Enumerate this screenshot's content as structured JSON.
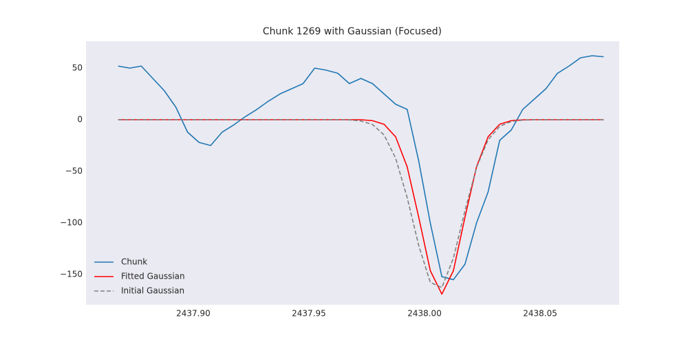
{
  "chart_data": {
    "type": "line",
    "title": "Chunk 1269 with Gaussian (Focused)",
    "x": [
      2437.8675,
      2437.8725,
      2437.8775,
      2437.8825,
      2437.8875,
      2437.8925,
      2437.8975,
      2437.9025,
      2437.9075,
      2437.9125,
      2437.9175,
      2437.9225,
      2437.9275,
      2437.9325,
      2437.9375,
      2437.9425,
      2437.9475,
      2437.9525,
      2437.9575,
      2437.9625,
      2437.9675,
      2437.9725,
      2437.9775,
      2437.9825,
      2437.9875,
      2437.9925,
      2437.9975,
      2438.0025,
      2438.0075,
      2438.0125,
      2438.0175,
      2438.0225,
      2438.0275,
      2438.0325,
      2438.0375,
      2438.0425,
      2438.0475,
      2438.0525,
      2438.0575,
      2438.0625,
      2438.0675,
      2438.0725,
      2438.0775
    ],
    "series": [
      {
        "name": "Chunk",
        "color": "#1f77b4",
        "linestyle": "solid",
        "values": [
          52,
          50,
          52,
          40,
          28,
          12,
          -12,
          -22,
          -25,
          -12,
          -5,
          3,
          10,
          18,
          25,
          30,
          35,
          50,
          48,
          45,
          35,
          40,
          35,
          25,
          15,
          10,
          -40,
          -100,
          -152,
          -155,
          -140,
          -100,
          -70,
          -20,
          -10,
          10,
          20,
          30,
          45,
          52,
          60,
          62,
          61
        ]
      },
      {
        "name": "Fitted Gaussian",
        "color": "#ff0000",
        "linestyle": "solid",
        "values": [
          0,
          0,
          0,
          0,
          0,
          0,
          0,
          0,
          0,
          0,
          0,
          0,
          0,
          0,
          0,
          0,
          0,
          0,
          0,
          0,
          0,
          0,
          -0.9,
          -4.4,
          -16.5,
          -45.6,
          -94.5,
          -146.2,
          -169,
          -146.2,
          -94.5,
          -45.6,
          -16.5,
          -4.4,
          -0.9,
          -0.1,
          0,
          0,
          0,
          0,
          0,
          0,
          0
        ]
      },
      {
        "name": "Initial Gaussian",
        "color": "#808080",
        "linestyle": "dashed",
        "values": [
          0,
          0,
          0,
          0,
          0,
          0,
          0,
          0,
          0,
          0,
          0,
          0,
          0,
          0,
          0,
          0,
          0,
          0,
          0,
          0,
          -0.2,
          -1.2,
          -4.6,
          -14.7,
          -37.2,
          -75.4,
          -121.9,
          -157.6,
          -162.6,
          -134.0,
          -88.1,
          -46.3,
          -19.4,
          -6.5,
          -1.7,
          -0.4,
          0,
          0,
          0,
          0,
          0,
          0,
          0
        ]
      }
    ],
    "xlim": [
      2437.8536,
      2438.0842
    ],
    "ylim": [
      -179.3,
      76
    ],
    "xticks": [
      {
        "value": 2437.9,
        "label": "2437.90"
      },
      {
        "value": 2437.95,
        "label": "2437.95"
      },
      {
        "value": 2438.0,
        "label": "2438.00"
      },
      {
        "value": 2438.05,
        "label": "2438.05"
      }
    ],
    "yticks": [
      {
        "value": -150,
        "label": "−150"
      },
      {
        "value": -100,
        "label": "−100"
      },
      {
        "value": -50,
        "label": "−50"
      },
      0,
      50
    ],
    "grid": false,
    "legend": "lower left",
    "background": "#eaeaf2"
  }
}
